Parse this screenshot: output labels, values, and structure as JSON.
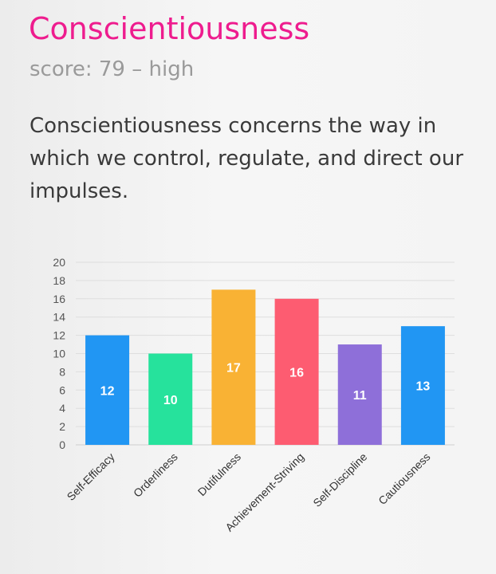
{
  "header": {
    "title": "Conscientiousness",
    "score_line": "score: 79 – high"
  },
  "description": "Conscientiousness concerns the way in which we control, regulate, and direct our impulses.",
  "colors": {
    "title": "#ee1c8e",
    "bars": [
      "#2196f3",
      "#26e29c",
      "#f9b234",
      "#fd5c71",
      "#8e6fd9",
      "#2196f3"
    ]
  },
  "chart_data": {
    "type": "bar",
    "title": "",
    "xlabel": "",
    "ylabel": "",
    "categories": [
      "Self-Efficacy",
      "Orderliness",
      "Dutifulness",
      "Achievement-Striving",
      "Self-Discipline",
      "Cautiousness"
    ],
    "values": [
      12,
      10,
      17,
      16,
      11,
      13
    ],
    "ylim": [
      0,
      20
    ],
    "yticks": [
      0,
      2,
      4,
      6,
      8,
      10,
      12,
      14,
      16,
      18,
      20
    ],
    "grid": true,
    "data_labels": true
  }
}
